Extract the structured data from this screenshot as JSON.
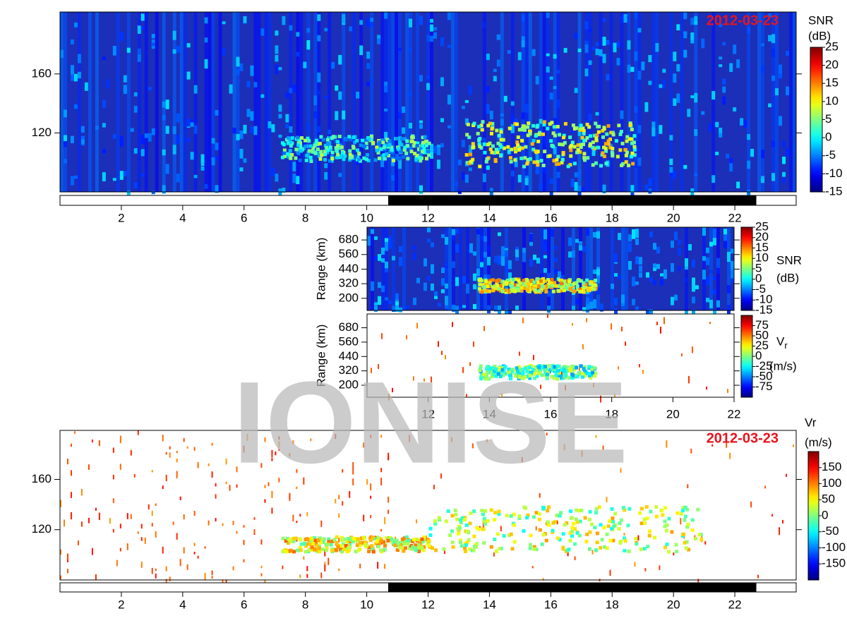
{
  "chart_data": [
    {
      "type": "heatmap",
      "title": "2012-03-23",
      "colormap": "jet",
      "field": "snr",
      "xlim": [
        0,
        24
      ],
      "xticks": [
        2,
        4,
        6,
        8,
        10,
        12,
        14,
        16,
        18,
        20,
        22
      ],
      "ylim": [
        80,
        202
      ],
      "yticks": [
        120,
        160
      ],
      "night": [
        10.7,
        22.7
      ],
      "colorbar": {
        "label": [
          "SNR",
          "(dB)"
        ],
        "lim": [
          -15,
          25
        ],
        "ticks": [
          -15,
          -10,
          -5,
          0,
          5,
          10,
          15,
          20,
          25
        ]
      }
    },
    {
      "type": "heatmap",
      "colormap": "jet",
      "field": "snr",
      "ylabel": "Range (km)",
      "xlim": [
        10,
        22
      ],
      "ylim": [
        100,
        785
      ],
      "yticks": [
        200,
        320,
        440,
        560,
        680
      ],
      "colorbar": {
        "label": [
          "SNR",
          "(dB)"
        ],
        "lim": [
          -15,
          25
        ],
        "ticks": [
          -15,
          -10,
          -5,
          0,
          5,
          10,
          15,
          20,
          25
        ]
      }
    },
    {
      "type": "heatmap",
      "colormap": "jet",
      "field": "velocity",
      "ylabel": "Range (km)",
      "xlim": [
        10,
        22
      ],
      "xticks": [
        12,
        14,
        16,
        18,
        20,
        22
      ],
      "ylim": [
        100,
        795
      ],
      "yticks": [
        200,
        320,
        440,
        560,
        680
      ],
      "colorbar": {
        "label": [
          "V",
          "(m/s)"
        ],
        "label_sub": "r",
        "lim": [
          -100,
          100
        ],
        "ticks": [
          -75,
          -50,
          -25,
          0,
          25,
          50,
          75
        ]
      }
    },
    {
      "type": "heatmap",
      "title": "2012-03-23",
      "colormap": "jet",
      "field": "velocity",
      "xlim": [
        0,
        24
      ],
      "xticks": [
        2,
        4,
        6,
        8,
        10,
        12,
        14,
        16,
        18,
        20,
        22
      ],
      "ylim": [
        80,
        199
      ],
      "yticks": [
        120,
        160
      ],
      "night": [
        10.7,
        22.7
      ],
      "colorbar": {
        "label": [
          "Vr",
          "(m/s)"
        ],
        "lim": [
          -200,
          200
        ],
        "ticks": [
          -150,
          -100,
          -50,
          0,
          50,
          100,
          150
        ]
      }
    }
  ],
  "watermark": "IONISE"
}
